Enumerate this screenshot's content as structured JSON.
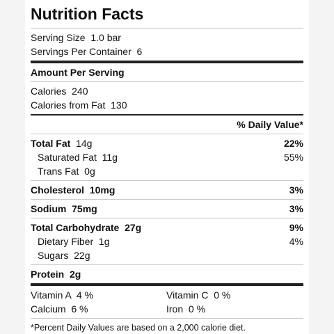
{
  "title": "Nutrition Facts",
  "serving": {
    "size_label": "Serving Size",
    "size_value": "1.0 bar",
    "per_container_label": "Servings Per Container",
    "per_container_value": "6"
  },
  "amount_per_serving": "Amount Per Serving",
  "calories": {
    "label": "Calories",
    "value": "240",
    "fat_label": "Calories from Fat",
    "fat_value": "130"
  },
  "daily_value_header": "% Daily Value*",
  "nutrients": {
    "total_fat": {
      "label": "Total Fat",
      "amount": "14g",
      "dv": "22%"
    },
    "saturated_fat": {
      "label": "Saturated Fat",
      "amount": "11g",
      "dv": "55%"
    },
    "trans_fat": {
      "label": "Trans Fat",
      "amount": "0g"
    },
    "cholesterol": {
      "label": "Cholesterol",
      "amount": "10mg",
      "dv": "3%"
    },
    "sodium": {
      "label": "Sodium",
      "amount": "75mg",
      "dv": "3%"
    },
    "total_carb": {
      "label": "Total Carbohydrate",
      "amount": "27g",
      "dv": "9%"
    },
    "dietary_fiber": {
      "label": "Dietary Fiber",
      "amount": "1g",
      "dv": "4%"
    },
    "sugars": {
      "label": "Sugars",
      "amount": "22g"
    },
    "protein": {
      "label": "Protein",
      "amount": "2g"
    }
  },
  "vitamins": {
    "vitamin_a": {
      "label": "Vitamin A",
      "value": "4 %"
    },
    "vitamin_c": {
      "label": "Vitamin C",
      "value": "0 %"
    },
    "calcium": {
      "label": "Calcium",
      "value": "6 %"
    },
    "iron": {
      "label": "Iron",
      "value": "0 %"
    }
  },
  "footnote": "*Percent Daily Values are based on a 2,000 calorie diet."
}
